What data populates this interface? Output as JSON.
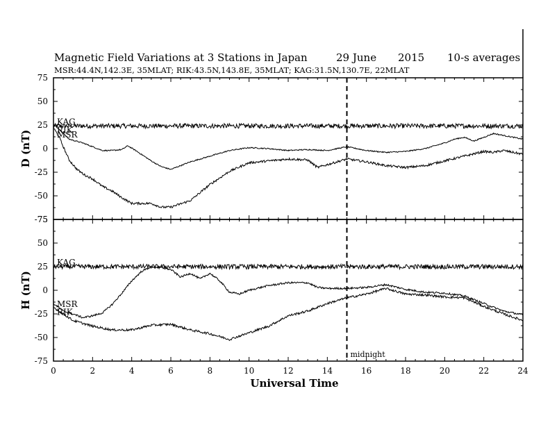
{
  "chart_data": {
    "type": "line",
    "title_parts": [
      "Magnetic Field Variations at 3 Stations in Japan",
      "29 June",
      "2015",
      "10-s averages"
    ],
    "subtitle": "MSR:44.4N,142.3E, 35MLAT;  RIK:43.5N,143.8E, 35MLAT;  KAG:31.5N,130.7E, 22MLAT",
    "xlabel": "Universal Time",
    "xlim": [
      0,
      24
    ],
    "xticks": [
      "0",
      "2",
      "4",
      "6",
      "8",
      "10",
      "12",
      "14",
      "16",
      "18",
      "20",
      "22",
      "24"
    ],
    "midnight": {
      "x": 15,
      "label": "midnight"
    },
    "panels": [
      {
        "ylabel": "D (nT)",
        "ylim": [
          -75,
          75
        ],
        "yticks": [
          "75",
          "50",
          "25",
          "0",
          "-25",
          "-50",
          "-75"
        ],
        "series": [
          {
            "name": "KAG",
            "noise": 2.5,
            "points": [
              [
                0,
                24
              ],
              [
                24,
                24
              ]
            ]
          },
          {
            "name": "RIK",
            "noise": 0.6,
            "points": [
              [
                0,
                26
              ],
              [
                0.3,
                20
              ],
              [
                0.8,
                10
              ],
              [
                1.5,
                6
              ],
              [
                2,
                2
              ],
              [
                2.5,
                -2
              ],
              [
                3,
                -2
              ],
              [
                3.5,
                -1
              ],
              [
                3.8,
                3
              ],
              [
                4.2,
                -2
              ],
              [
                5,
                -13
              ],
              [
                5.5,
                -19
              ],
              [
                6,
                -22
              ],
              [
                6.5,
                -18
              ],
              [
                7,
                -14
              ],
              [
                8,
                -8
              ],
              [
                9,
                -2
              ],
              [
                10,
                1
              ],
              [
                11,
                0
              ],
              [
                12,
                -2
              ],
              [
                13,
                -1
              ],
              [
                14,
                -2
              ],
              [
                14.5,
                0
              ],
              [
                15,
                2
              ],
              [
                15.5,
                0
              ],
              [
                16,
                -2
              ],
              [
                17,
                -4
              ],
              [
                18,
                -3
              ],
              [
                19,
                0
              ],
              [
                20,
                6
              ],
              [
                20.5,
                10
              ],
              [
                21,
                12
              ],
              [
                21.5,
                8
              ],
              [
                22,
                12
              ],
              [
                22.5,
                16
              ],
              [
                23,
                14
              ],
              [
                23.5,
                12
              ],
              [
                24,
                10
              ]
            ]
          },
          {
            "name": "MSR",
            "noise": 1.2,
            "points": [
              [
                0,
                22
              ],
              [
                0.3,
                12
              ],
              [
                0.5,
                2
              ],
              [
                0.8,
                -12
              ],
              [
                1.2,
                -22
              ],
              [
                1.6,
                -28
              ],
              [
                2,
                -32
              ],
              [
                2.5,
                -40
              ],
              [
                3,
                -45
              ],
              [
                3.5,
                -52
              ],
              [
                4,
                -58
              ],
              [
                5,
                -58
              ],
              [
                5.5,
                -62
              ],
              [
                6,
                -62
              ],
              [
                7,
                -55
              ],
              [
                8,
                -38
              ],
              [
                9,
                -24
              ],
              [
                10,
                -15
              ],
              [
                11,
                -13
              ],
              [
                12,
                -11
              ],
              [
                13,
                -12
              ],
              [
                13.5,
                -20
              ],
              [
                14,
                -17
              ],
              [
                15,
                -11
              ],
              [
                16,
                -14
              ],
              [
                17,
                -18
              ],
              [
                18,
                -20
              ],
              [
                19,
                -18
              ],
              [
                20,
                -13
              ],
              [
                21,
                -8
              ],
              [
                22,
                -3
              ],
              [
                22.5,
                -4
              ],
              [
                23,
                -2
              ],
              [
                24,
                -6
              ]
            ]
          }
        ]
      },
      {
        "ylabel": "H (nT)",
        "ylim": [
          -75,
          75
        ],
        "yticks": [
          "75",
          "50",
          "25",
          "0",
          "-25",
          "-50",
          "-75"
        ],
        "series": [
          {
            "name": "KAG",
            "noise": 2.5,
            "points": [
              [
                0,
                25
              ],
              [
                24,
                25
              ]
            ]
          },
          {
            "name": "MSR",
            "noise": 1.0,
            "points": [
              [
                0,
                -14
              ],
              [
                0.5,
                -22
              ],
              [
                1,
                -25
              ],
              [
                1.5,
                -29
              ],
              [
                2,
                -27
              ],
              [
                2.5,
                -24
              ],
              [
                3,
                -15
              ],
              [
                3.5,
                -3
              ],
              [
                4,
                10
              ],
              [
                4.5,
                20
              ],
              [
                5,
                25
              ],
              [
                5.5,
                24
              ],
              [
                6,
                22
              ],
              [
                6.5,
                14
              ],
              [
                7,
                18
              ],
              [
                7.5,
                12
              ],
              [
                8,
                18
              ],
              [
                8.5,
                10
              ],
              [
                9,
                -2
              ],
              [
                9.5,
                -4
              ],
              [
                10,
                0
              ],
              [
                11,
                5
              ],
              [
                12,
                8
              ],
              [
                13,
                8
              ],
              [
                13.5,
                3
              ],
              [
                14,
                2
              ],
              [
                15,
                2
              ],
              [
                16,
                3
              ],
              [
                17,
                6
              ],
              [
                18,
                1
              ],
              [
                19,
                -2
              ],
              [
                20,
                -3
              ],
              [
                21,
                -6
              ],
              [
                22,
                -14
              ],
              [
                23,
                -22
              ],
              [
                24,
                -26
              ]
            ]
          },
          {
            "name": "RIK",
            "noise": 1.2,
            "points": [
              [
                0,
                -18
              ],
              [
                0.5,
                -25
              ],
              [
                1,
                -32
              ],
              [
                2,
                -38
              ],
              [
                3,
                -42
              ],
              [
                4,
                -42
              ],
              [
                5,
                -37
              ],
              [
                6,
                -36
              ],
              [
                7,
                -42
              ],
              [
                8,
                -46
              ],
              [
                9,
                -52
              ],
              [
                10,
                -45
              ],
              [
                11,
                -38
              ],
              [
                12,
                -27
              ],
              [
                13,
                -22
              ],
              [
                14,
                -14
              ],
              [
                15,
                -8
              ],
              [
                16,
                -4
              ],
              [
                17,
                2
              ],
              [
                18,
                -4
              ],
              [
                19,
                -5
              ],
              [
                20,
                -7
              ],
              [
                21,
                -8
              ],
              [
                22,
                -17
              ],
              [
                23,
                -25
              ],
              [
                24,
                -32
              ]
            ]
          }
        ]
      }
    ]
  }
}
